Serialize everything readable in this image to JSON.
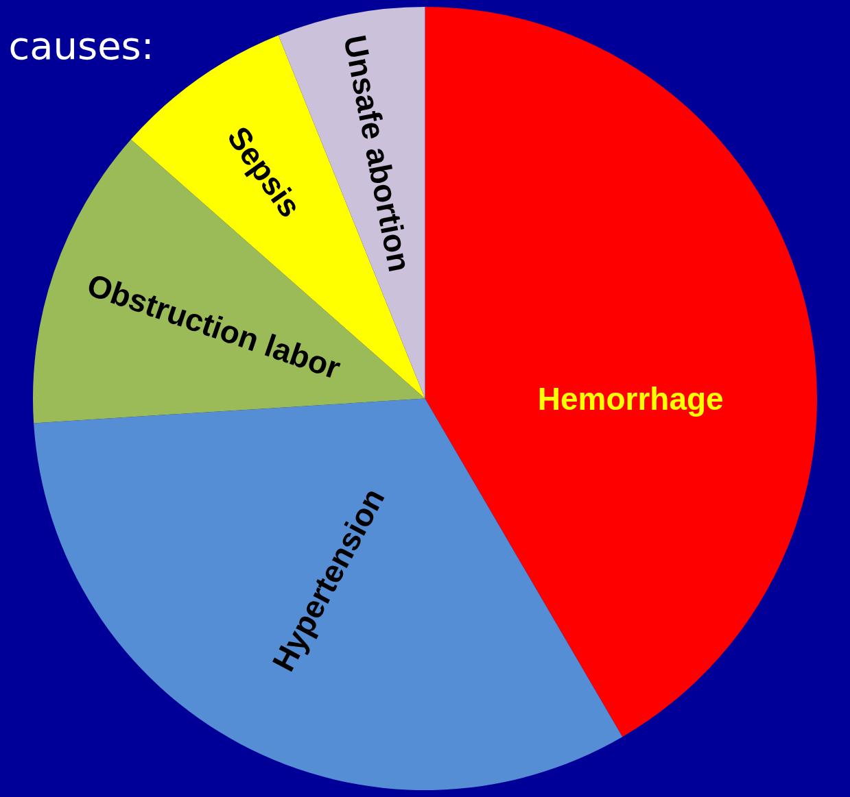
{
  "chart_data": {
    "type": "pie",
    "title": "causes:",
    "categories": [
      "Hemorrhage",
      "Hypertension",
      "Obstruction labor",
      "Sepsis",
      "Unsafe abortion"
    ],
    "values": [
      41.6,
      32.4,
      12.5,
      7.4,
      6.1
    ],
    "colors": [
      "#ff0000",
      "#558ed5",
      "#9bbb59",
      "#ffff00",
      "#ccc1da"
    ],
    "legend": false
  }
}
